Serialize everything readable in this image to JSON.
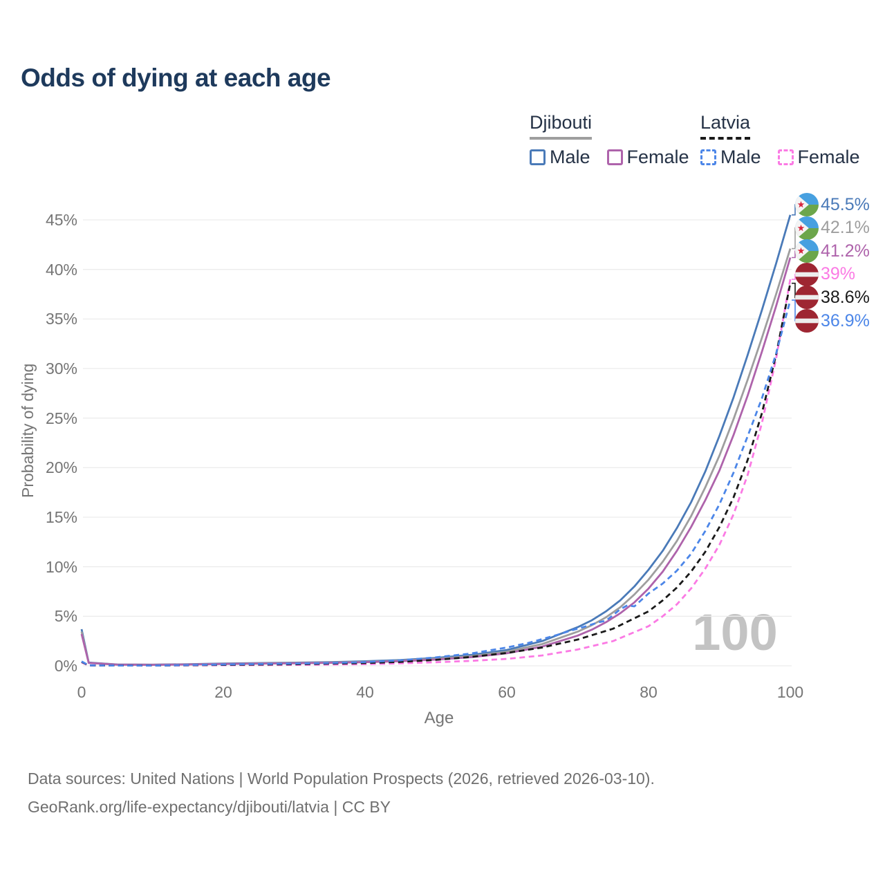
{
  "title": "Odds of dying at each age",
  "legend": {
    "groups": [
      {
        "country": "Djibouti",
        "line_style": "solid",
        "line_color": "#9e9e9e",
        "items": [
          {
            "label": "Male",
            "color": "#4a7ab8",
            "dashed": false
          },
          {
            "label": "Female",
            "color": "#ae63ab",
            "dashed": false
          }
        ]
      },
      {
        "country": "Latvia",
        "line_style": "dashed",
        "line_color": "#1a1a1a",
        "items": [
          {
            "label": "Male",
            "color": "#4c86e8",
            "dashed": true
          },
          {
            "label": "Female",
            "color": "#fb7ae4",
            "dashed": true
          }
        ]
      }
    ]
  },
  "footer": {
    "line1": "Data sources: United Nations | World Population Prospects (2026, retrieved 2026-03-10).",
    "line2": "GeoRank.org/life-expectancy/djibouti/latvia | CC BY"
  },
  "chart_data": {
    "type": "line",
    "title": "Odds of dying at each age",
    "xlabel": "Age",
    "ylabel": "Probability of dying",
    "xlim": [
      0,
      100
    ],
    "ylim_percent": [
      0,
      47
    ],
    "grid": "horizontal",
    "x_ticks": [
      0,
      20,
      40,
      60,
      80,
      100
    ],
    "x_tick_labels": [
      "0",
      "20",
      "40",
      "60",
      "80",
      "100"
    ],
    "y_ticks_percent": [
      0,
      5,
      10,
      15,
      20,
      25,
      30,
      35,
      40,
      45
    ],
    "y_tick_labels_top_down": [
      "45%",
      "40%",
      "35%",
      "30%",
      "25%",
      "20%",
      "15%",
      "10%",
      "5%",
      "0%"
    ],
    "watermark": "100",
    "legend_position": "top-right",
    "series": [
      {
        "name": "Djibouti Male",
        "color": "#4a7ab8",
        "dash": "solid",
        "flag": "djibouti",
        "end_label": "45.5%",
        "points": [
          [
            0,
            3.7
          ],
          [
            1,
            0.33
          ],
          [
            5,
            0.14
          ],
          [
            10,
            0.12
          ],
          [
            15,
            0.17
          ],
          [
            20,
            0.24
          ],
          [
            25,
            0.28
          ],
          [
            30,
            0.32
          ],
          [
            35,
            0.38
          ],
          [
            40,
            0.46
          ],
          [
            45,
            0.58
          ],
          [
            50,
            0.8
          ],
          [
            55,
            1.1
          ],
          [
            60,
            1.6
          ],
          [
            65,
            2.5
          ],
          [
            70,
            3.9
          ],
          [
            72,
            4.6
          ],
          [
            74,
            5.5
          ],
          [
            76,
            6.6
          ],
          [
            78,
            8.0
          ],
          [
            80,
            9.7
          ],
          [
            82,
            11.6
          ],
          [
            84,
            13.9
          ],
          [
            86,
            16.5
          ],
          [
            88,
            19.6
          ],
          [
            90,
            23.2
          ],
          [
            92,
            27.1
          ],
          [
            94,
            31.4
          ],
          [
            96,
            35.9
          ],
          [
            98,
            40.6
          ],
          [
            100,
            45.5
          ]
        ]
      },
      {
        "name": "Djibouti Both sexes",
        "color": "#9e9e9e",
        "dash": "solid",
        "flag": "djibouti",
        "end_label": "42.1%",
        "points": [
          [
            0,
            3.45
          ],
          [
            1,
            0.31
          ],
          [
            5,
            0.13
          ],
          [
            10,
            0.11
          ],
          [
            15,
            0.15
          ],
          [
            20,
            0.21
          ],
          [
            25,
            0.25
          ],
          [
            30,
            0.29
          ],
          [
            35,
            0.34
          ],
          [
            40,
            0.41
          ],
          [
            45,
            0.52
          ],
          [
            50,
            0.71
          ],
          [
            55,
            0.98
          ],
          [
            60,
            1.42
          ],
          [
            65,
            2.2
          ],
          [
            70,
            3.45
          ],
          [
            72,
            4.1
          ],
          [
            74,
            4.9
          ],
          [
            76,
            5.9
          ],
          [
            78,
            7.2
          ],
          [
            80,
            8.7
          ],
          [
            82,
            10.5
          ],
          [
            84,
            12.6
          ],
          [
            86,
            15.1
          ],
          [
            88,
            18.0
          ],
          [
            90,
            21.2
          ],
          [
            92,
            24.9
          ],
          [
            94,
            28.9
          ],
          [
            96,
            33.1
          ],
          [
            98,
            37.5
          ],
          [
            100,
            42.1
          ]
        ]
      },
      {
        "name": "Djibouti Female",
        "color": "#ae63ab",
        "dash": "solid",
        "flag": "djibouti",
        "end_label": "41.2%",
        "points": [
          [
            0,
            3.2
          ],
          [
            1,
            0.29
          ],
          [
            5,
            0.12
          ],
          [
            10,
            0.1
          ],
          [
            15,
            0.13
          ],
          [
            20,
            0.18
          ],
          [
            25,
            0.22
          ],
          [
            30,
            0.26
          ],
          [
            35,
            0.3
          ],
          [
            40,
            0.37
          ],
          [
            45,
            0.47
          ],
          [
            50,
            0.63
          ],
          [
            55,
            0.87
          ],
          [
            60,
            1.26
          ],
          [
            65,
            1.95
          ],
          [
            70,
            3.05
          ],
          [
            72,
            3.65
          ],
          [
            74,
            4.4
          ],
          [
            76,
            5.3
          ],
          [
            78,
            6.4
          ],
          [
            80,
            7.8
          ],
          [
            82,
            9.5
          ],
          [
            84,
            11.6
          ],
          [
            86,
            14.0
          ],
          [
            88,
            16.7
          ],
          [
            90,
            19.7
          ],
          [
            92,
            23.3
          ],
          [
            94,
            27.3
          ],
          [
            96,
            31.7
          ],
          [
            98,
            36.3
          ],
          [
            100,
            41.2
          ]
        ]
      },
      {
        "name": "Latvia Female",
        "color": "#fb7ae4",
        "dash": "dashed",
        "flag": "latvia",
        "end_label": "39%",
        "points": [
          [
            0,
            0.35
          ],
          [
            1,
            0.03
          ],
          [
            10,
            0.02
          ],
          [
            20,
            0.06
          ],
          [
            30,
            0.1
          ],
          [
            40,
            0.17
          ],
          [
            45,
            0.25
          ],
          [
            50,
            0.36
          ],
          [
            55,
            0.5
          ],
          [
            60,
            0.7
          ],
          [
            65,
            1.05
          ],
          [
            70,
            1.65
          ],
          [
            75,
            2.5
          ],
          [
            80,
            4.0
          ],
          [
            82,
            5.0
          ],
          [
            84,
            6.2
          ],
          [
            86,
            7.8
          ],
          [
            88,
            9.8
          ],
          [
            90,
            12.2
          ],
          [
            92,
            15.3
          ],
          [
            94,
            19.3
          ],
          [
            96,
            24.5
          ],
          [
            98,
            31.0
          ],
          [
            100,
            39.0
          ]
        ]
      },
      {
        "name": "Latvia Both sexes",
        "color": "#1a1a1a",
        "dash": "dashed",
        "flag": "latvia",
        "end_label": "38.6%",
        "points": [
          [
            0,
            0.4
          ],
          [
            1,
            0.04
          ],
          [
            10,
            0.03
          ],
          [
            20,
            0.1
          ],
          [
            30,
            0.16
          ],
          [
            40,
            0.28
          ],
          [
            45,
            0.4
          ],
          [
            50,
            0.6
          ],
          [
            55,
            0.9
          ],
          [
            60,
            1.3
          ],
          [
            65,
            1.85
          ],
          [
            70,
            2.65
          ],
          [
            75,
            3.75
          ],
          [
            80,
            5.5
          ],
          [
            82,
            6.6
          ],
          [
            84,
            7.9
          ],
          [
            86,
            9.5
          ],
          [
            88,
            11.5
          ],
          [
            90,
            14.0
          ],
          [
            92,
            17.0
          ],
          [
            94,
            20.8
          ],
          [
            96,
            25.5
          ],
          [
            98,
            31.4
          ],
          [
            100,
            38.6
          ]
        ]
      },
      {
        "name": "Latvia Male",
        "color": "#4c86e8",
        "dash": "dashed",
        "flag": "latvia",
        "end_label": "36.9%",
        "points": [
          [
            0,
            0.45
          ],
          [
            1,
            0.05
          ],
          [
            5,
            0.03
          ],
          [
            10,
            0.03
          ],
          [
            15,
            0.08
          ],
          [
            20,
            0.14
          ],
          [
            25,
            0.18
          ],
          [
            30,
            0.22
          ],
          [
            35,
            0.28
          ],
          [
            40,
            0.38
          ],
          [
            45,
            0.55
          ],
          [
            50,
            0.85
          ],
          [
            55,
            1.25
          ],
          [
            60,
            1.85
          ],
          [
            63,
            2.3
          ],
          [
            65,
            2.7
          ],
          [
            67,
            3.1
          ],
          [
            69,
            3.55
          ],
          [
            71,
            3.95
          ],
          [
            73,
            4.4
          ],
          [
            74,
            4.55
          ],
          [
            76,
            5.7
          ],
          [
            77,
            6.1
          ],
          [
            78,
            6.0
          ],
          [
            80,
            7.3
          ],
          [
            82,
            8.3
          ],
          [
            84,
            9.6
          ],
          [
            86,
            11.3
          ],
          [
            88,
            13.6
          ],
          [
            90,
            16.3
          ],
          [
            92,
            19.5
          ],
          [
            94,
            23.2
          ],
          [
            96,
            27.0
          ],
          [
            98,
            31.5
          ],
          [
            100,
            36.9
          ]
        ]
      }
    ]
  }
}
